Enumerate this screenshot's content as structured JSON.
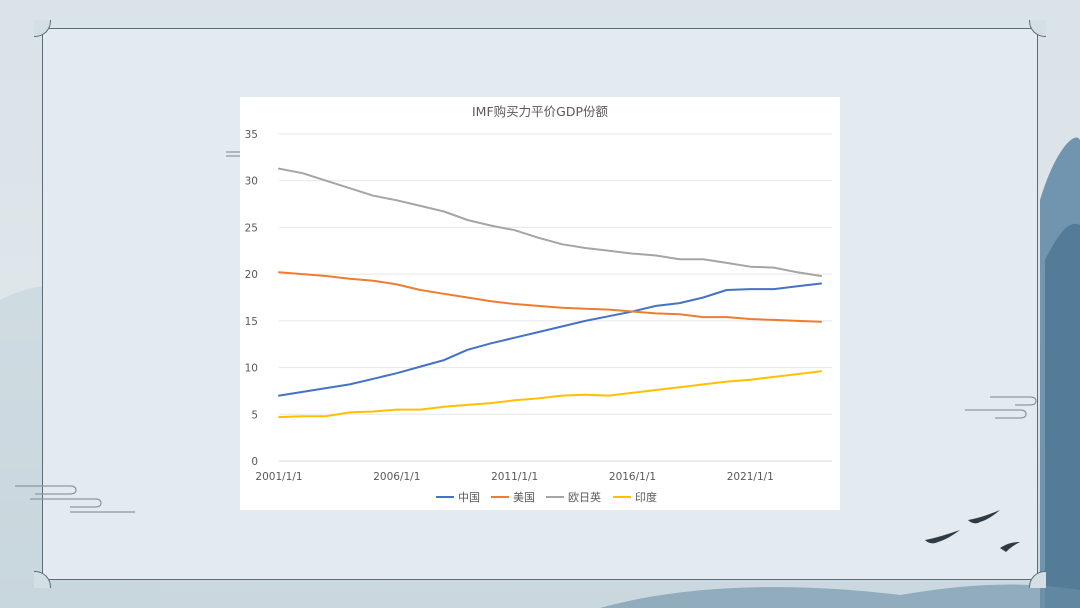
{
  "chart_data": {
    "type": "line",
    "title": "IMF购买力平价GDP份额",
    "xlabel": "",
    "ylabel": "",
    "ylim": [
      0,
      35
    ],
    "yticks": [
      "0",
      "5",
      "10",
      "15",
      "20",
      "25",
      "30",
      "35"
    ],
    "x": [
      2001,
      2002,
      2003,
      2004,
      2005,
      2006,
      2007,
      2008,
      2009,
      2010,
      2011,
      2012,
      2013,
      2014,
      2015,
      2016,
      2017,
      2018,
      2019,
      2020,
      2021,
      2022,
      2023,
      2024
    ],
    "xticks": [
      {
        "label": "2001/1/1",
        "year": 2001
      },
      {
        "label": "2006/1/1",
        "year": 2006
      },
      {
        "label": "2011/1/1",
        "year": 2011
      },
      {
        "label": "2016/1/1",
        "year": 2016
      },
      {
        "label": "2021/1/1",
        "year": 2021
      }
    ],
    "grid": true,
    "legend_position": "bottom",
    "series": [
      {
        "name": "中国",
        "color": "#4472c4",
        "values": [
          7.0,
          7.4,
          7.8,
          8.2,
          8.8,
          9.4,
          10.1,
          10.8,
          11.9,
          12.6,
          13.2,
          13.8,
          14.4,
          15.0,
          15.5,
          16.0,
          16.6,
          16.9,
          17.5,
          18.3,
          18.4,
          18.4,
          18.7,
          19.0
        ]
      },
      {
        "name": "美国",
        "color": "#ed7d31",
        "values": [
          20.2,
          20.0,
          19.8,
          19.5,
          19.3,
          18.9,
          18.3,
          17.9,
          17.5,
          17.1,
          16.8,
          16.6,
          16.4,
          16.3,
          16.2,
          16.0,
          15.8,
          15.7,
          15.4,
          15.4,
          15.2,
          15.1,
          15.0,
          14.9
        ]
      },
      {
        "name": "欧日英",
        "color": "#a5a5a5",
        "values": [
          31.3,
          30.8,
          30.0,
          29.2,
          28.4,
          27.9,
          27.3,
          26.7,
          25.8,
          25.2,
          24.7,
          23.9,
          23.2,
          22.8,
          22.5,
          22.2,
          22.0,
          21.6,
          21.6,
          21.2,
          20.8,
          20.7,
          20.2,
          19.8
        ]
      },
      {
        "name": "印度",
        "color": "#ffc000",
        "values": [
          4.7,
          4.8,
          4.8,
          5.2,
          5.3,
          5.5,
          5.5,
          5.8,
          6.0,
          6.2,
          6.5,
          6.7,
          7.0,
          7.1,
          7.0,
          7.3,
          7.6,
          7.9,
          8.2,
          8.5,
          8.7,
          9.0,
          9.3,
          9.6
        ]
      }
    ]
  }
}
